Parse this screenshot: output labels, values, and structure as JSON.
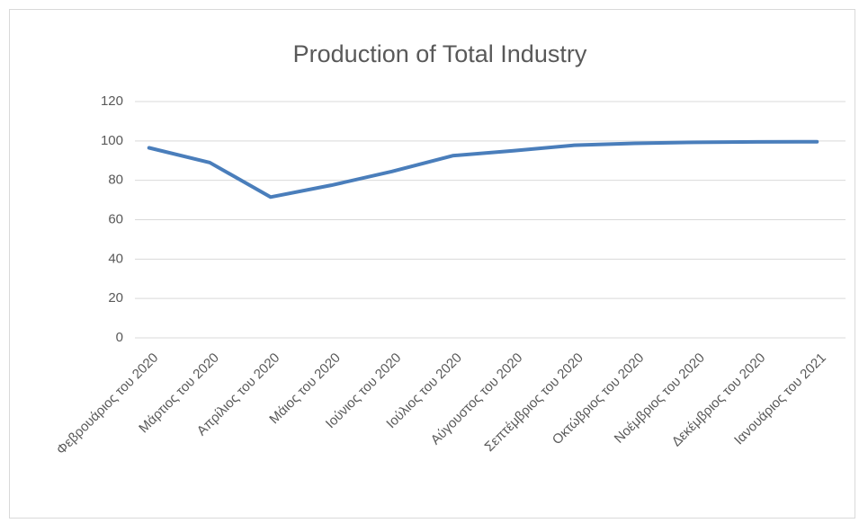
{
  "chart_data": {
    "type": "line",
    "title": "Production of Total Industry",
    "categories": [
      "Φεβρουάριος του 2020",
      "Μάρτιος του 2020",
      "Απρίλιος του 2020",
      "Μάιος του 2020",
      "Ιούνιος του 2020",
      "Ιούλιος του 2020",
      "Αύγουστος του 2020",
      "Σεπτέμβριος του 2020",
      "Οκτώβριος του 2020",
      "Νοέμβριος του 2020",
      "Δεκέμβριος του 2020",
      "Ιανουάριος του 2021"
    ],
    "values": [
      96.5,
      89,
      71.5,
      77.5,
      84.5,
      92.5,
      95,
      97.8,
      98.8,
      99.3,
      99.5,
      99.6
    ],
    "color": "#4a7ebb",
    "ylim": [
      0,
      120
    ],
    "yticks": [
      0,
      20,
      40,
      60,
      80,
      100,
      120
    ],
    "grid": true
  }
}
